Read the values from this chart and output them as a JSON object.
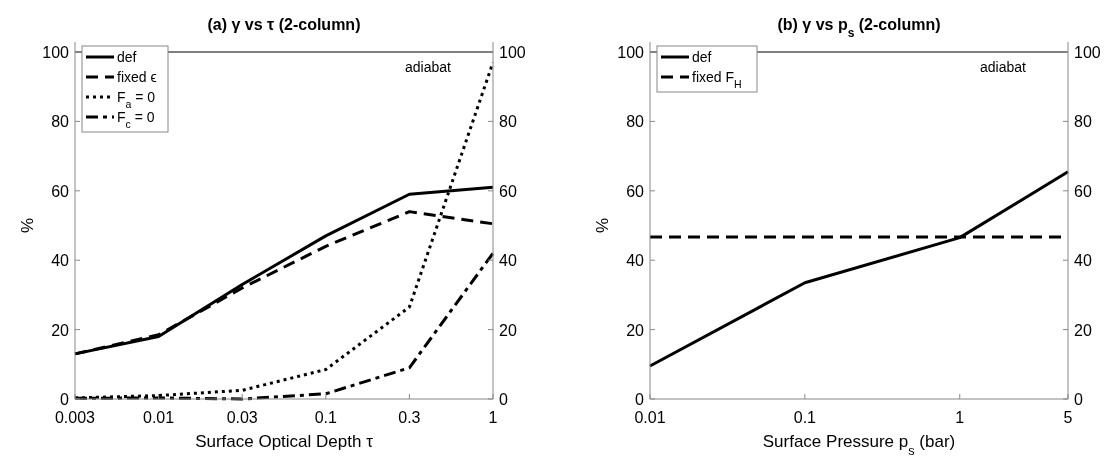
{
  "chart_data": [
    {
      "type": "line",
      "title": "(a) γ vs τ (2-column)",
      "xlabel": "Surface Optical Depth τ",
      "ylabel": "%",
      "categories": [
        "0.003",
        "0.01",
        "0.03",
        "0.1",
        "0.3",
        "1"
      ],
      "ylim": [
        0,
        100
      ],
      "yticks": [
        0,
        20,
        40,
        60,
        80,
        100
      ],
      "y2lim": [
        0,
        100
      ],
      "y2ticks": [
        0,
        20,
        40,
        60,
        80,
        100
      ],
      "grid": false,
      "legend": "top left",
      "marker": "none",
      "ref_lines": [
        {
          "axis": "y",
          "value": 100,
          "label": "adiabat",
          "color": "#000000",
          "line_style": "solid"
        }
      ],
      "series": [
        {
          "name": "def",
          "color": "#000000",
          "line_style": "solid",
          "values": [
            13,
            18,
            33,
            47,
            59,
            61
          ]
        },
        {
          "name": "fixed ϵ",
          "color": "#000000",
          "line_style": "dashed",
          "values": [
            13,
            18.5,
            32,
            44,
            54,
            50.5
          ]
        },
        {
          "name": "F$_{a}$ = 0",
          "color": "#000000",
          "line_style": "dotted",
          "values": [
            0.3,
            1,
            2.5,
            8.5,
            26.5,
            97
          ]
        },
        {
          "name": "F$_{c}$ = 0",
          "color": "#000000",
          "line_style": "dashdot",
          "values": [
            0.2,
            0.3,
            0,
            1.5,
            9,
            42
          ]
        }
      ]
    },
    {
      "type": "line",
      "title": "(b) γ vs p$_{s}$ (2-column)",
      "xlabel": "Surface Pressure p$_{s}$ (bar)",
      "ylabel": "%",
      "log": "x",
      "x": [
        0.01,
        0.1,
        1,
        5
      ],
      "xlim": [
        0.01,
        5
      ],
      "xticks": [
        0.01,
        0.1,
        1,
        5
      ],
      "ylim": [
        0,
        100
      ],
      "yticks": [
        0,
        20,
        40,
        60,
        80,
        100
      ],
      "y2lim": [
        0,
        100
      ],
      "y2ticks": [
        0,
        20,
        40,
        60,
        80,
        100
      ],
      "grid": false,
      "legend": "top left",
      "marker": "none",
      "ref_lines": [
        {
          "axis": "y",
          "value": 100,
          "label": "adiabat",
          "color": "#000000",
          "line_style": "solid"
        }
      ],
      "series": [
        {
          "name": "def",
          "color": "#000000",
          "line_style": "solid",
          "values": [
            9.5,
            33.5,
            46.5,
            65.5
          ]
        },
        {
          "name": "fixed F$_{H}$",
          "color": "#000000",
          "line_style": "dashed",
          "values": [
            46.7,
            46.7,
            46.7,
            46.7
          ]
        }
      ]
    }
  ]
}
